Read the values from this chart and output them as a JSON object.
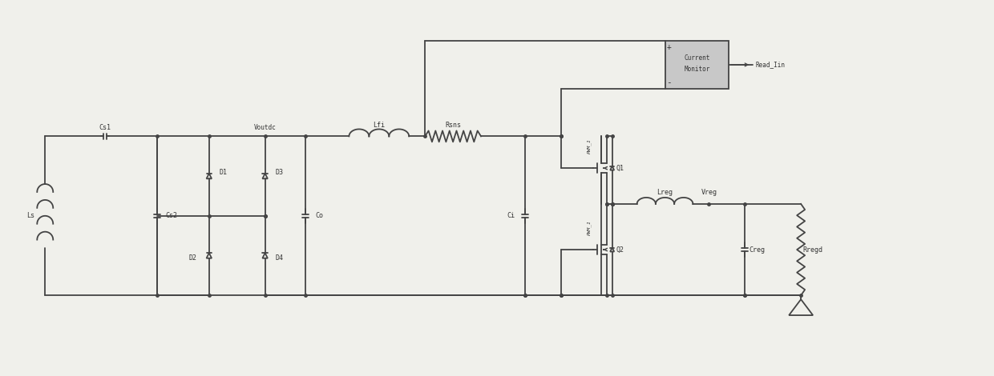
{
  "bg_color": "#f0f0eb",
  "line_color": "#444444",
  "line_width": 1.3,
  "text_color": "#333333",
  "box_fill": "#c8c8c8",
  "fig_width": 12.4,
  "fig_height": 4.7,
  "xlim": [
    0,
    124
  ],
  "ylim": [
    0,
    47
  ]
}
